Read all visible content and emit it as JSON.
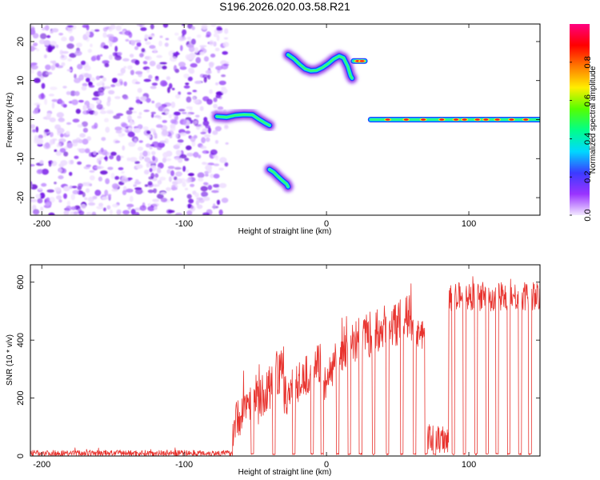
{
  "figure": {
    "title": "S196.2026.020.03.58.R21"
  },
  "chart_data": [
    {
      "type": "heatmap",
      "xlabel": "Height of straight line (km)",
      "ylabel": "Frequency (Hz)",
      "xlim": [
        -208,
        150
      ],
      "ylim": [
        -24.5,
        24.5
      ],
      "xticks": [
        -200,
        -100,
        0,
        100
      ],
      "yticks": [
        -20,
        -10,
        0,
        10,
        20
      ],
      "noise_region_x": [
        -208,
        -72
      ],
      "tracks": [
        {
          "name": "track-a",
          "points": [
            [
              -77,
              0.8
            ],
            [
              -70,
              0.6
            ],
            [
              -64,
              1.1
            ],
            [
              -58,
              1.3
            ],
            [
              -52,
              1.2
            ],
            [
              -48,
              0.2
            ],
            [
              -43,
              -0.9
            ],
            [
              -40,
              -1.5
            ]
          ]
        },
        {
          "name": "track-b",
          "points": [
            [
              -40,
              -12.8
            ],
            [
              -37,
              -13.5
            ],
            [
              -34,
              -14.6
            ],
            [
              -31,
              -15.6
            ],
            [
              -28,
              -16.5
            ],
            [
              -27,
              -17.2
            ]
          ]
        },
        {
          "name": "track-c",
          "points": [
            [
              -27,
              16.6
            ],
            [
              -23,
              15.6
            ],
            [
              -19,
              14.2
            ],
            [
              -15,
              13.0
            ],
            [
              -11,
              12.5
            ],
            [
              -7,
              12.6
            ],
            [
              -3,
              13.3
            ],
            [
              1,
              14.3
            ],
            [
              5,
              15.5
            ],
            [
              9,
              16.3
            ],
            [
              12,
              15.8
            ],
            [
              15,
              13.6
            ],
            [
              17,
              11.2
            ],
            [
              18,
              10.6
            ]
          ]
        },
        {
          "name": "track-d",
          "points": [
            [
              19,
              15
            ],
            [
              27,
              15
            ]
          ]
        },
        {
          "name": "track-e",
          "points": [
            [
              31,
              0
            ],
            [
              150,
              0
            ]
          ]
        }
      ],
      "colorbar": {
        "label": "Normalized spectral amplitude",
        "range": [
          0,
          1
        ],
        "ticks": [
          0.0,
          0.2,
          0.4,
          0.6,
          0.8
        ],
        "tick_labels": [
          "0.0",
          "0.2",
          "0.4",
          "0.6",
          "0.8"
        ],
        "colors": [
          "#f2e8ff",
          "#9a33ff",
          "#3b3bff",
          "#00d8ff",
          "#00ff8a",
          "#55ff00",
          "#ffee00",
          "#ff7a00",
          "#ff0000",
          "#ff0080"
        ]
      }
    },
    {
      "type": "line",
      "xlabel": "Height of straight line (km)",
      "ylabel": "SNR (10 * v/v)",
      "xlim": [
        -208,
        150
      ],
      "ylim": [
        0,
        660
      ],
      "xticks": [
        -200,
        -100,
        0,
        100
      ],
      "yticks": [
        0,
        200,
        400,
        600
      ],
      "color": "#e8332e",
      "series": [
        {
          "name": "SNR",
          "segments": [
            {
              "x": [
                -208,
                -66
              ],
              "base": 10,
              "noise": 10
            },
            {
              "x": [
                -66,
                -48
              ],
              "base_start": 100,
              "base_end": 240,
              "noise": 70
            },
            {
              "x": [
                -48,
                -30
              ],
              "base_start": 180,
              "base_end": 300,
              "noise": 80
            },
            {
              "x": [
                -30,
                -3
              ],
              "base_start": 200,
              "base_end": 330,
              "noise": 70
            },
            {
              "x": [
                -3,
                12
              ],
              "base_start": 250,
              "base_end": 350,
              "noise": 70
            },
            {
              "x": [
                12,
                60
              ],
              "base_start": 380,
              "base_end": 480,
              "noise": 80
            },
            {
              "x": [
                60,
                70
              ],
              "base": 420,
              "noise": 50
            },
            {
              "x": [
                70,
                86
              ],
              "base": 60,
              "noise": 50
            },
            {
              "x": [
                86,
                150
              ],
              "base": 550,
              "noise": 50
            }
          ],
          "dips": [
            [
              -53,
              -51
            ],
            [
              -38,
              -36
            ],
            [
              -24,
              -22
            ],
            [
              -11,
              -9
            ],
            [
              -4,
              -2
            ],
            [
              7,
              9
            ],
            [
              15,
              17
            ],
            [
              23,
              25
            ],
            [
              32,
              34
            ],
            [
              42,
              44
            ],
            [
              52,
              54
            ],
            [
              61,
              63
            ],
            [
              69,
              71
            ],
            [
              75,
              77
            ],
            [
              88,
              90
            ],
            [
              96,
              98
            ],
            [
              104,
              106
            ],
            [
              112,
              114
            ],
            [
              119,
              121
            ],
            [
              127,
              129
            ],
            [
              135,
              137
            ],
            [
              142,
              144
            ]
          ]
        }
      ]
    }
  ]
}
